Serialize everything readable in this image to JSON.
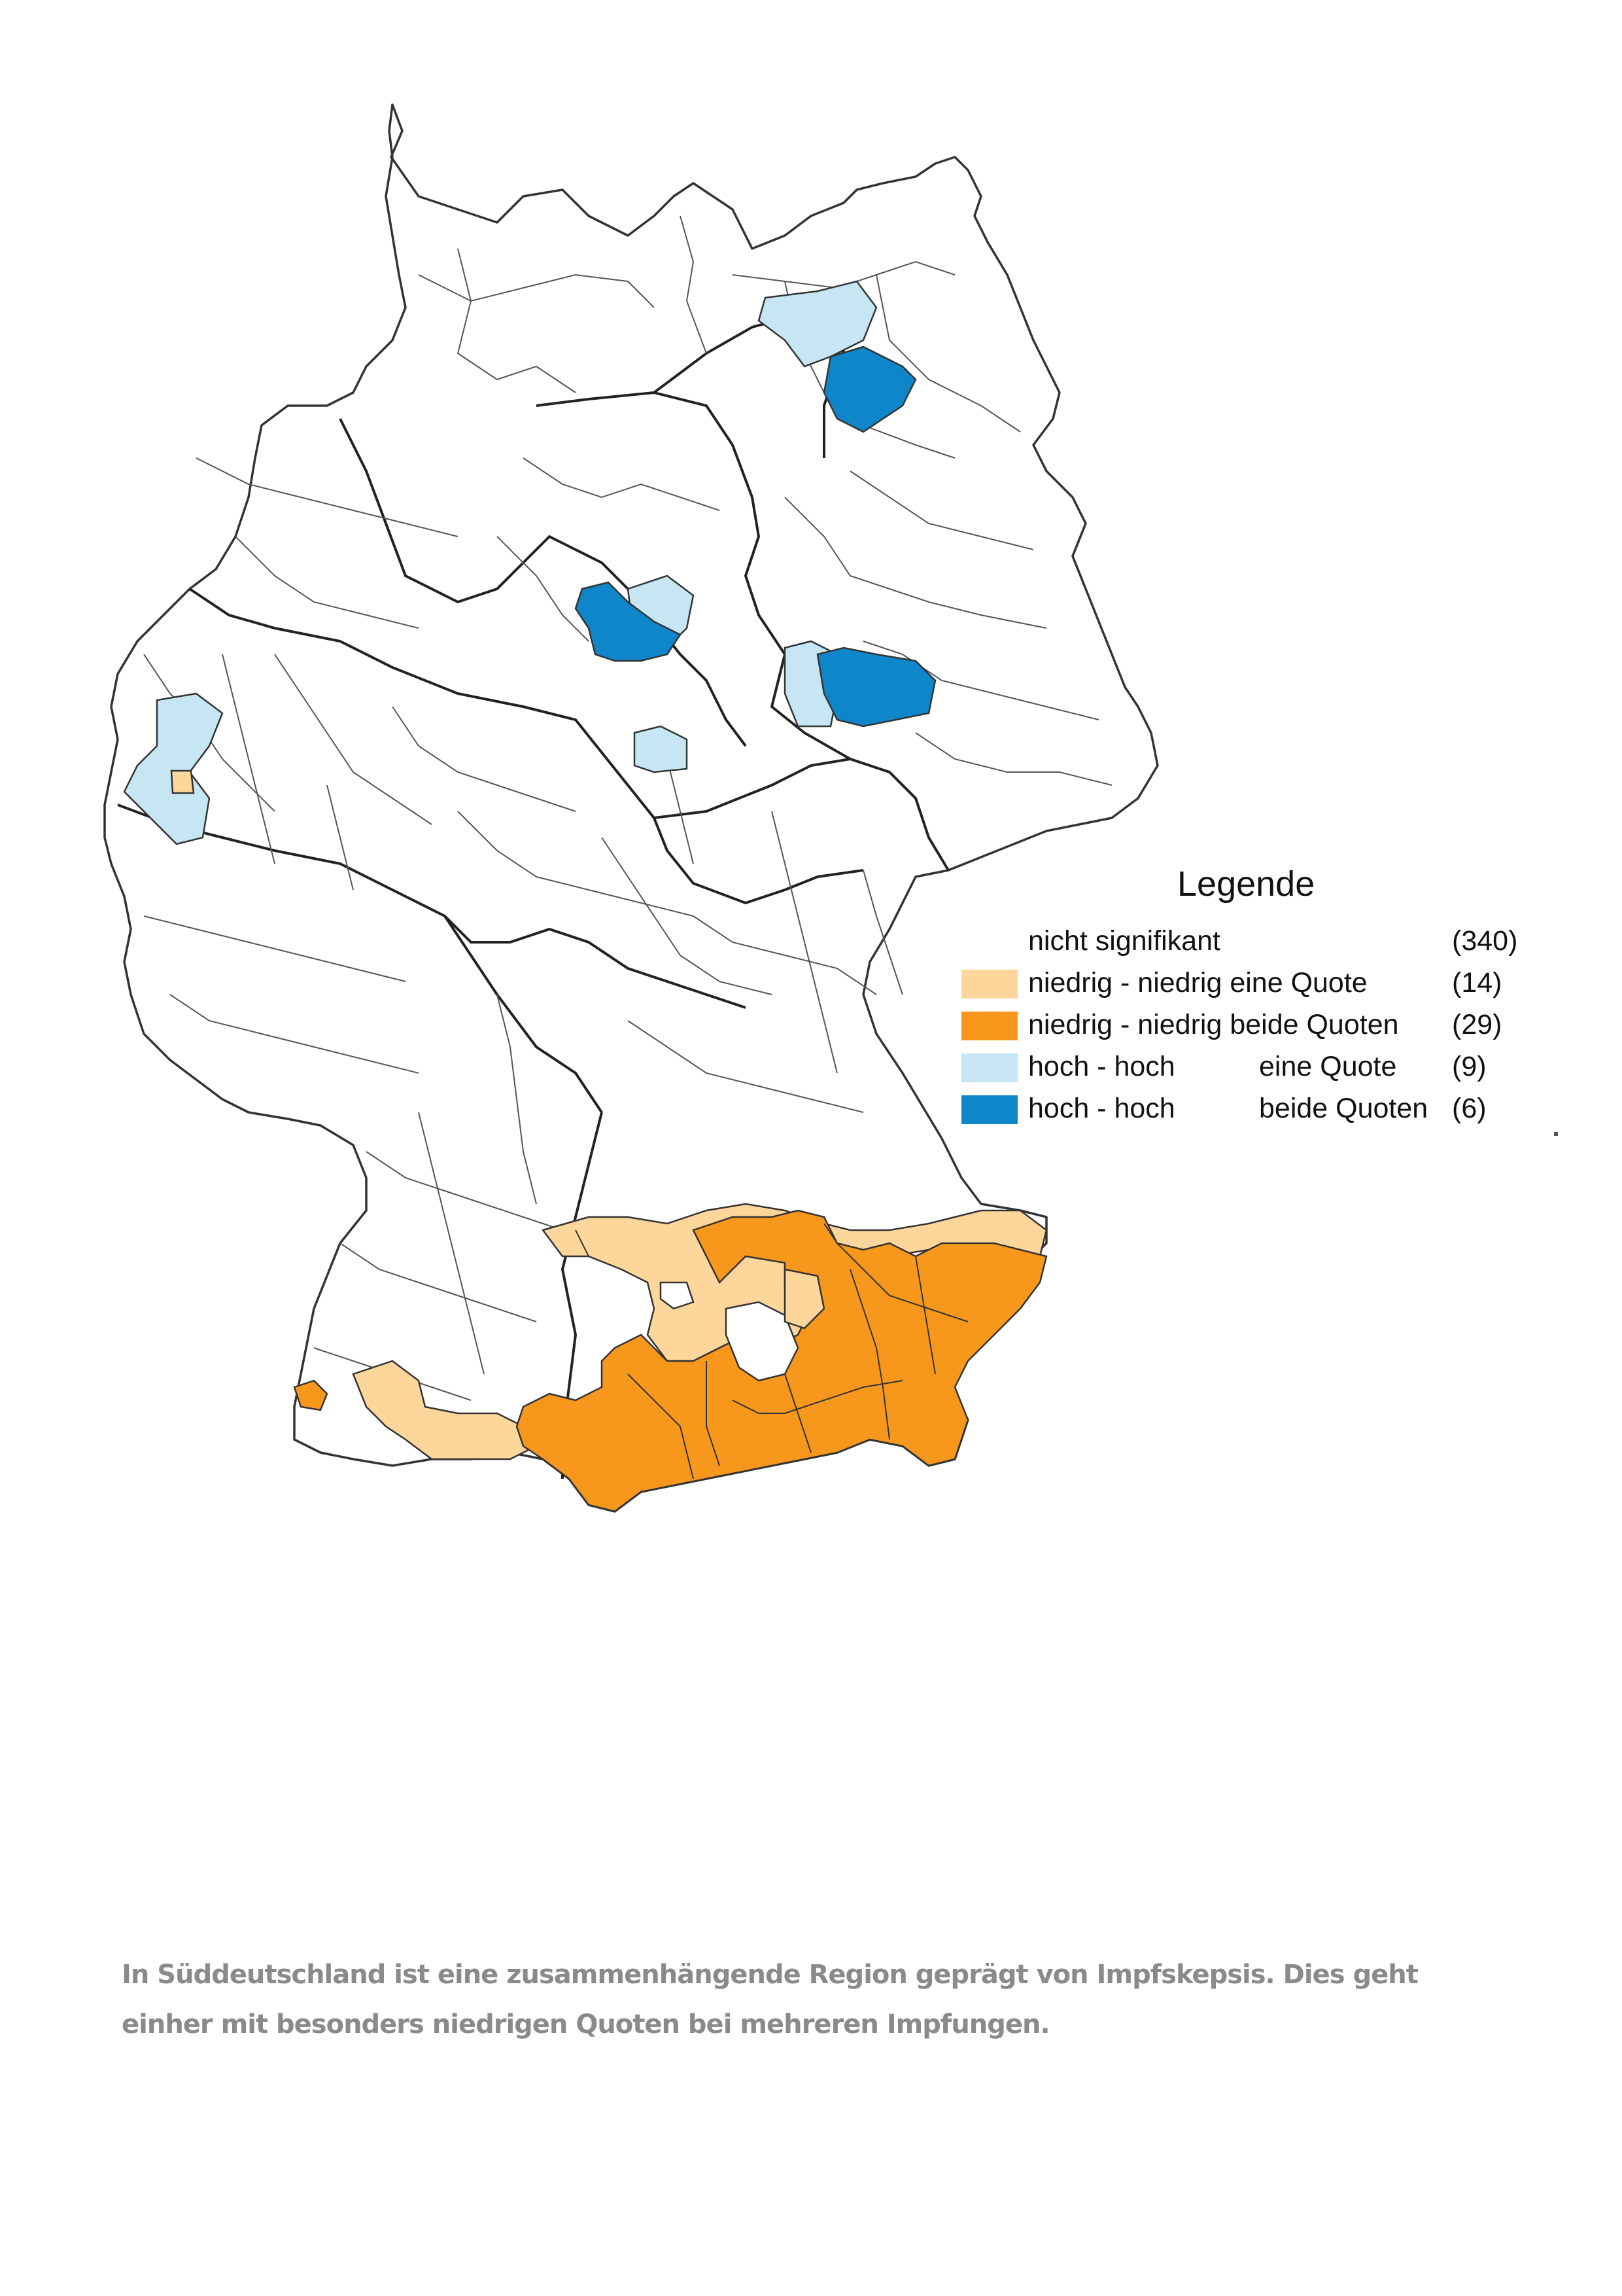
{
  "legend": {
    "title": "Legende",
    "items": [
      {
        "label": "nicht signifikant",
        "sub": "",
        "count": "(340)",
        "color": "#ffffff"
      },
      {
        "label": "niedrig - niedrig eine Quote",
        "sub": "",
        "count": "(14)",
        "color": "#fdd69b"
      },
      {
        "label": "niedrig - niedrig beide Quoten",
        "sub": "",
        "count": "(29)",
        "color": "#f7981d"
      },
      {
        "label": "hoch - hoch",
        "sub": "eine Quote",
        "count": "(9)",
        "color": "#c7e6f3"
      },
      {
        "label": "hoch - hoch",
        "sub": "beide Quoten",
        "count": "(6)",
        "color": "#0f86c9"
      }
    ]
  },
  "caption": "In Süddeutschland ist eine zusammenhängende Region geprägt von Impfskepsis. Dies geht einher mit besonders niedrigen Quoten bei mehreren Impfungen.",
  "colors": {
    "outline": "#333333",
    "background": "#ffffff"
  }
}
